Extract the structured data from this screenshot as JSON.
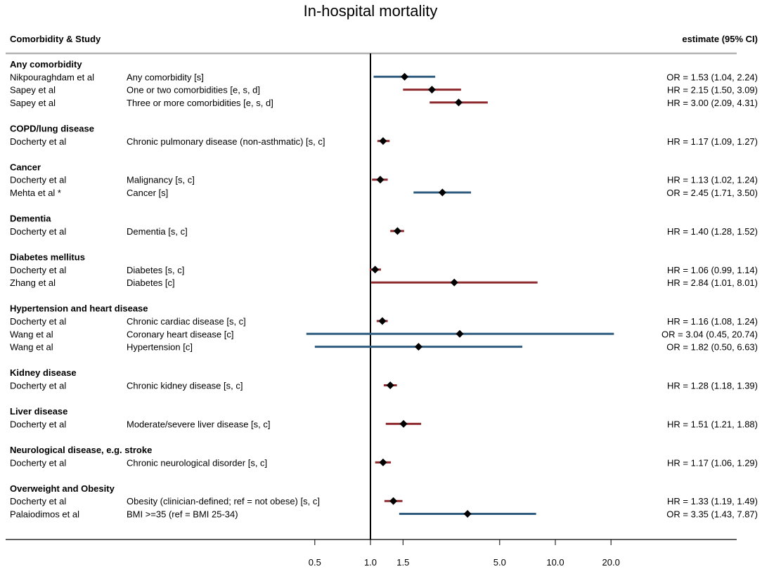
{
  "chart_data": {
    "type": "forest",
    "title": "In-hospital mortality",
    "column_headers": {
      "study": "Comorbidity & Study",
      "estimate": "estimate (95% CI)"
    },
    "x_scale": "log",
    "x_ticks": [
      {
        "value": 0.5,
        "label": "0.5"
      },
      {
        "value": 1.0,
        "label": "1.0"
      },
      {
        "value": 1.5,
        "label": "1.5"
      },
      {
        "value": 5.0,
        "label": "5.0"
      },
      {
        "value": 10.0,
        "label": "10.0"
      },
      {
        "value": 20.0,
        "label": "20.0"
      }
    ],
    "reference_line": 1.0,
    "series_colors": {
      "OR": "#2e5b7e",
      "HR": "#8e2a2e"
    },
    "groups": [
      {
        "label": "Any comorbidity",
        "rows": [
          {
            "study": "Nikpouraghdam et al",
            "factor": "Any comorbidity [s]",
            "type": "OR",
            "est": 1.53,
            "lo": 1.04,
            "hi": 2.24,
            "text": "OR = 1.53 (1.04, 2.24)"
          },
          {
            "study": "Sapey et al",
            "factor": "One or two comorbidities [e, s, d]",
            "type": "HR",
            "est": 2.15,
            "lo": 1.5,
            "hi": 3.09,
            "text": "HR = 2.15 (1.50, 3.09)"
          },
          {
            "study": "Sapey et al",
            "factor": "Three or more comorbidities [e, s, d]",
            "type": "HR",
            "est": 3.0,
            "lo": 2.09,
            "hi": 4.31,
            "text": "HR = 3.00 (2.09, 4.31)"
          }
        ]
      },
      {
        "label": "COPD/lung disease",
        "rows": [
          {
            "study": "Docherty et al",
            "factor": "Chronic pulmonary disease (non-asthmatic) [s, c]",
            "type": "HR",
            "est": 1.17,
            "lo": 1.09,
            "hi": 1.27,
            "text": "HR = 1.17 (1.09, 1.27)"
          }
        ]
      },
      {
        "label": "Cancer",
        "rows": [
          {
            "study": "Docherty et al",
            "factor": "Malignancy [s, c]",
            "type": "HR",
            "est": 1.13,
            "lo": 1.02,
            "hi": 1.24,
            "text": "HR = 1.13 (1.02, 1.24)"
          },
          {
            "study": "Mehta et al *",
            "factor": "Cancer [s]",
            "type": "OR",
            "est": 2.45,
            "lo": 1.71,
            "hi": 3.5,
            "text": "OR = 2.45 (1.71, 3.50)"
          }
        ]
      },
      {
        "label": "Dementia",
        "rows": [
          {
            "study": "Docherty et al",
            "factor": "Dementia [s, c]",
            "type": "HR",
            "est": 1.4,
            "lo": 1.28,
            "hi": 1.52,
            "text": "HR = 1.40 (1.28, 1.52)"
          }
        ]
      },
      {
        "label": "Diabetes mellitus",
        "rows": [
          {
            "study": "Docherty et al",
            "factor": "Diabetes [s, c]",
            "type": "HR",
            "est": 1.06,
            "lo": 0.99,
            "hi": 1.14,
            "text": "HR = 1.06 (0.99, 1.14)"
          },
          {
            "study": "Zhang et al",
            "factor": "Diabetes [c]",
            "type": "HR",
            "est": 2.84,
            "lo": 1.01,
            "hi": 8.01,
            "text": "HR = 2.84 (1.01, 8.01)"
          }
        ]
      },
      {
        "label": "Hypertension and heart disease",
        "rows": [
          {
            "study": "Docherty et al",
            "factor": "Chronic cardiac disease [s, c]",
            "type": "HR",
            "est": 1.16,
            "lo": 1.08,
            "hi": 1.24,
            "text": "HR = 1.16 (1.08, 1.24)"
          },
          {
            "study": "Wang et al",
            "factor": "Coronary heart disease [c]",
            "type": "OR",
            "est": 3.04,
            "lo": 0.45,
            "hi": 20.74,
            "text": "OR = 3.04 (0.45, 20.74)"
          },
          {
            "study": "Wang et al",
            "factor": "Hypertension [c]",
            "type": "OR",
            "est": 1.82,
            "lo": 0.5,
            "hi": 6.63,
            "text": "OR = 1.82 (0.50, 6.63)"
          }
        ]
      },
      {
        "label": "Kidney disease",
        "rows": [
          {
            "study": "Docherty et al",
            "factor": "Chronic kidney disease [s, c]",
            "type": "HR",
            "est": 1.28,
            "lo": 1.18,
            "hi": 1.39,
            "text": "HR = 1.28 (1.18, 1.39)"
          }
        ]
      },
      {
        "label": "Liver disease",
        "rows": [
          {
            "study": "Docherty et al",
            "factor": "Moderate/severe liver disease [s, c]",
            "type": "HR",
            "est": 1.51,
            "lo": 1.21,
            "hi": 1.88,
            "text": "HR = 1.51 (1.21, 1.88)"
          }
        ]
      },
      {
        "label": "Neurological disease, e.g. stroke",
        "rows": [
          {
            "study": "Docherty et al",
            "factor": "Chronic neurological disorder [s, c]",
            "type": "HR",
            "est": 1.17,
            "lo": 1.06,
            "hi": 1.29,
            "text": "HR = 1.17 (1.06, 1.29)"
          }
        ]
      },
      {
        "label": "Overweight and Obesity",
        "rows": [
          {
            "study": "Docherty et al",
            "factor": "Obesity (clinician-defined; ref = not obese) [s, c]",
            "type": "HR",
            "est": 1.33,
            "lo": 1.19,
            "hi": 1.49,
            "text": "HR = 1.33 (1.19, 1.49)"
          },
          {
            "study": "Palaiodimos et al",
            "factor": "BMI >=35 (ref = BMI 25-34)",
            "type": "OR",
            "est": 3.35,
            "lo": 1.43,
            "hi": 7.87,
            "text": "OR = 3.35 (1.43, 7.87)"
          }
        ]
      }
    ]
  }
}
